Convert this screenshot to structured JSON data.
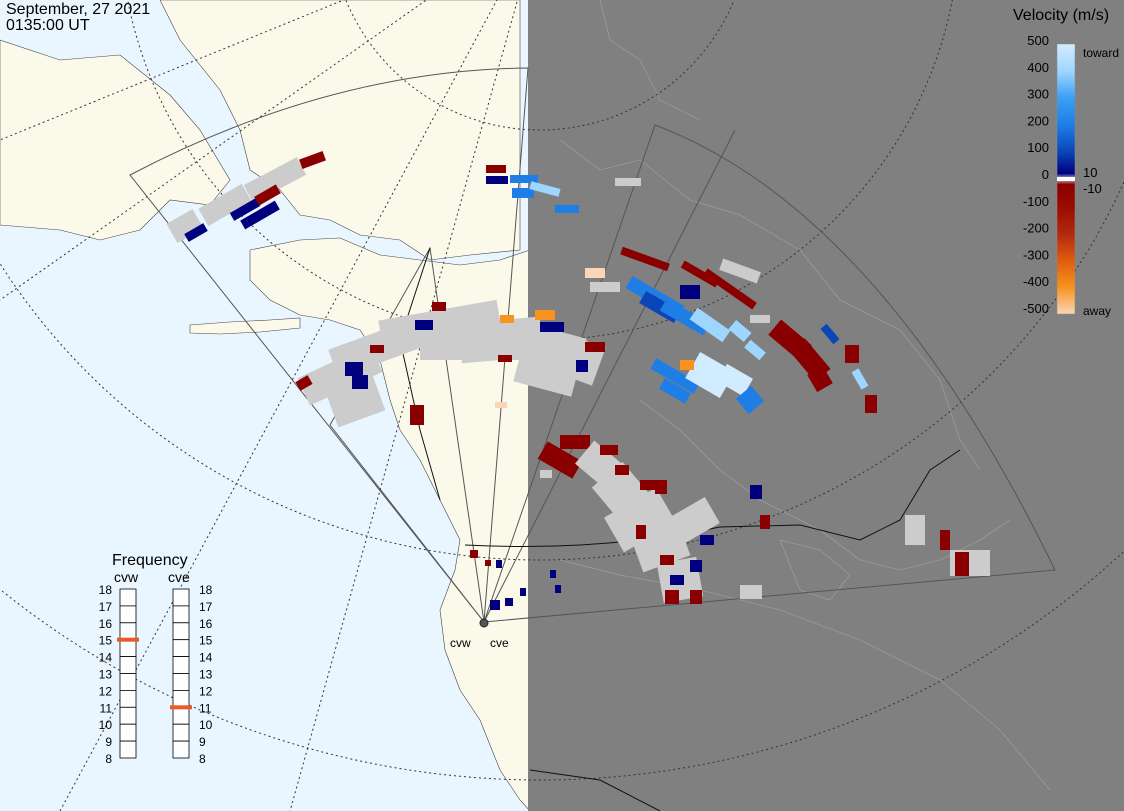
{
  "header": {
    "date": "September, 27 2021",
    "time": "0135:00 UT"
  },
  "velocity_scale": {
    "title": "Velocity (m/s)",
    "ticks": [
      "500",
      "400",
      "300",
      "200",
      "100",
      "0",
      "-100",
      "-200",
      "-300",
      "-400",
      "-500"
    ],
    "inner_ticks": [
      "10",
      "-10"
    ],
    "toward_label": "toward",
    "away_label": "away",
    "colors": [
      "#fbd5b5",
      "#f7931e",
      "#e05a10",
      "#b02810",
      "#8a0000",
      "#cccccc",
      "#00007f",
      "#0a46b8",
      "#1f7ee6",
      "#4aaaf5",
      "#d2ecff"
    ]
  },
  "frequency": {
    "title": "Frequency",
    "radars": [
      {
        "name": "cvw",
        "value": 15
      },
      {
        "name": "cve",
        "value": 11
      }
    ],
    "ticks": [
      "18",
      "17",
      "16",
      "15",
      "14",
      "13",
      "12",
      "11",
      "10",
      "9",
      "8"
    ],
    "marker_color": "#e85a2a"
  },
  "radar_sites": [
    {
      "name": "cvw"
    },
    {
      "name": "cve"
    }
  ],
  "colors": {
    "ocean": "#e9f6ff",
    "land": "#fbfaea",
    "night": "#808080",
    "grid_line": "#555555",
    "low_velocity": "#cccccc"
  }
}
